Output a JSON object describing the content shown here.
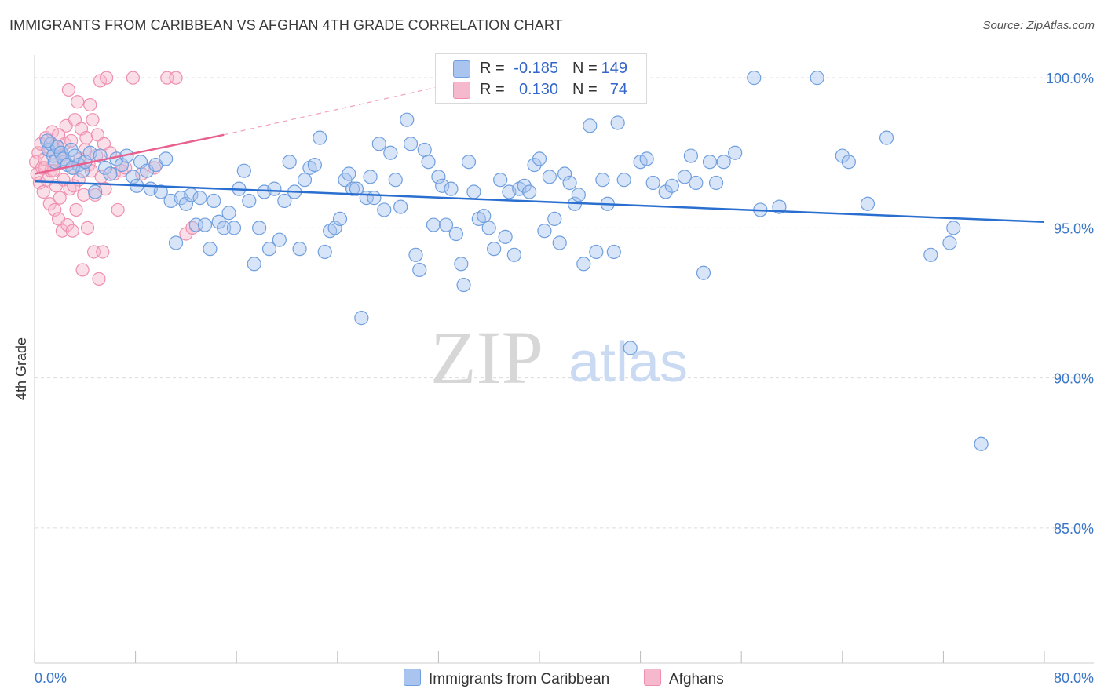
{
  "title": "IMMIGRANTS FROM CARIBBEAN VS AFGHAN 4TH GRADE CORRELATION CHART",
  "source": "Source: ZipAtlas.com",
  "watermark": {
    "zip": "ZIP",
    "atlas": "atlas"
  },
  "colors": {
    "blue_fill": "#a9c4ee",
    "blue_stroke": "#6f9fdf",
    "blue_line": "#2a6fcf",
    "pink_fill": "#f6b8cc",
    "pink_stroke": "#ee8fae",
    "pink_line": "#e8608e",
    "axis_label": "#3a76c8",
    "grid": "#dcdcdc"
  },
  "legend": {
    "rows": [
      {
        "series": "Immigrants from Caribbean",
        "r_label": "R =",
        "r_value": "-0.185",
        "n_label": "N =",
        "n_value": "149"
      },
      {
        "series": "Afghans",
        "r_label": "R =",
        "r_value": "0.130",
        "n_label": "N =",
        "n_value": "74"
      }
    ]
  },
  "chart_data": {
    "type": "scatter",
    "title": "IMMIGRANTS FROM CARIBBEAN VS AFGHAN 4TH GRADE CORRELATION CHART",
    "xlabel": "",
    "ylabel": "4th Grade",
    "xlim": [
      0,
      80
    ],
    "ylim": [
      80.5,
      100.5
    ],
    "x_tick_labels": [
      "0.0%",
      "80.0%"
    ],
    "y_ticks": [
      85,
      90,
      95,
      100
    ],
    "y_tick_labels": [
      "85.0%",
      "90.0%",
      "95.0%",
      "100.0%"
    ],
    "grid": true,
    "series": [
      {
        "name": "Immigrants from Caribbean",
        "r": -0.185,
        "n": 149,
        "trend": {
          "x": [
            0,
            80
          ],
          "y": [
            96.55,
            95.2
          ],
          "dashed_extension": false
        },
        "points": [
          [
            1.1,
            97.6
          ],
          [
            1.3,
            97.8
          ],
          [
            1.5,
            97.4
          ],
          [
            1.6,
            97.2
          ],
          [
            1.8,
            97.7
          ],
          [
            2.1,
            97.5
          ],
          [
            2.3,
            97.3
          ],
          [
            2.6,
            97.1
          ],
          [
            2.9,
            97.6
          ],
          [
            3.2,
            97.4
          ],
          [
            3.5,
            97.1
          ],
          [
            3.8,
            96.9
          ],
          [
            4.0,
            97.2
          ],
          [
            4.4,
            97.5
          ],
          [
            4.8,
            96.2
          ],
          [
            5.2,
            97.4
          ],
          [
            5.6,
            97.0
          ],
          [
            6.0,
            96.8
          ],
          [
            6.5,
            97.3
          ],
          [
            6.9,
            97.1
          ],
          [
            7.3,
            97.4
          ],
          [
            7.8,
            96.7
          ],
          [
            8.1,
            96.4
          ],
          [
            8.4,
            97.2
          ],
          [
            8.9,
            96.9
          ],
          [
            9.2,
            96.3
          ],
          [
            9.6,
            97.1
          ],
          [
            10.0,
            96.2
          ],
          [
            10.4,
            97.3
          ],
          [
            10.8,
            95.9
          ],
          [
            11.2,
            94.5
          ],
          [
            11.6,
            96.0
          ],
          [
            12.0,
            95.8
          ],
          [
            12.4,
            96.1
          ],
          [
            12.8,
            95.1
          ],
          [
            13.1,
            96.0
          ],
          [
            13.5,
            95.1
          ],
          [
            13.9,
            94.3
          ],
          [
            14.2,
            95.9
          ],
          [
            14.6,
            95.2
          ],
          [
            15.0,
            95.0
          ],
          [
            15.4,
            95.5
          ],
          [
            15.8,
            95.0
          ],
          [
            16.2,
            96.3
          ],
          [
            16.6,
            96.9
          ],
          [
            17.0,
            95.9
          ],
          [
            17.4,
            93.8
          ],
          [
            17.8,
            95.0
          ],
          [
            18.2,
            96.2
          ],
          [
            18.6,
            94.3
          ],
          [
            19.0,
            96.3
          ],
          [
            19.4,
            94.6
          ],
          [
            19.8,
            95.9
          ],
          [
            20.2,
            97.2
          ],
          [
            20.6,
            96.2
          ],
          [
            21.0,
            94.3
          ],
          [
            21.4,
            96.6
          ],
          [
            21.8,
            97.0
          ],
          [
            22.2,
            97.1
          ],
          [
            22.6,
            98.0
          ],
          [
            23.0,
            94.2
          ],
          [
            23.4,
            94.9
          ],
          [
            23.8,
            95.0
          ],
          [
            24.2,
            95.3
          ],
          [
            24.6,
            96.6
          ],
          [
            24.9,
            96.8
          ],
          [
            25.2,
            96.3
          ],
          [
            25.5,
            96.3
          ],
          [
            25.9,
            92.0
          ],
          [
            26.3,
            96.0
          ],
          [
            26.6,
            96.7
          ],
          [
            26.9,
            96.0
          ],
          [
            27.3,
            97.8
          ],
          [
            27.7,
            95.6
          ],
          [
            28.2,
            97.5
          ],
          [
            28.6,
            96.6
          ],
          [
            29.0,
            95.7
          ],
          [
            29.5,
            98.6
          ],
          [
            29.8,
            97.8
          ],
          [
            30.2,
            94.1
          ],
          [
            30.5,
            93.6
          ],
          [
            30.9,
            97.6
          ],
          [
            31.2,
            97.2
          ],
          [
            31.6,
            95.1
          ],
          [
            32.0,
            96.7
          ],
          [
            32.3,
            96.4
          ],
          [
            32.6,
            95.1
          ],
          [
            33.0,
            96.3
          ],
          [
            33.4,
            94.8
          ],
          [
            33.8,
            93.8
          ],
          [
            34.0,
            93.1
          ],
          [
            34.4,
            97.2
          ],
          [
            34.8,
            96.2
          ],
          [
            35.2,
            95.3
          ],
          [
            35.6,
            95.4
          ],
          [
            36.0,
            95.0
          ],
          [
            36.4,
            94.3
          ],
          [
            36.9,
            96.6
          ],
          [
            37.3,
            94.7
          ],
          [
            37.6,
            96.2
          ],
          [
            38.0,
            94.1
          ],
          [
            38.4,
            96.3
          ],
          [
            38.8,
            96.4
          ],
          [
            39.2,
            96.2
          ],
          [
            39.6,
            97.1
          ],
          [
            40.0,
            97.3
          ],
          [
            40.4,
            94.9
          ],
          [
            40.8,
            96.7
          ],
          [
            41.2,
            95.3
          ],
          [
            41.6,
            94.5
          ],
          [
            42.0,
            96.8
          ],
          [
            42.4,
            96.5
          ],
          [
            42.8,
            95.8
          ],
          [
            43.1,
            96.1
          ],
          [
            43.5,
            93.8
          ],
          [
            44.0,
            98.4
          ],
          [
            44.5,
            94.2
          ],
          [
            45.0,
            96.6
          ],
          [
            45.4,
            95.8
          ],
          [
            45.9,
            94.2
          ],
          [
            46.2,
            98.5
          ],
          [
            46.7,
            96.6
          ],
          [
            47.2,
            91.0
          ],
          [
            48.0,
            97.2
          ],
          [
            48.5,
            97.3
          ],
          [
            49.0,
            96.5
          ],
          [
            50.0,
            96.2
          ],
          [
            50.5,
            96.4
          ],
          [
            51.5,
            96.7
          ],
          [
            52.0,
            97.4
          ],
          [
            52.4,
            96.5
          ],
          [
            53.0,
            93.5
          ],
          [
            53.5,
            97.2
          ],
          [
            54.0,
            96.5
          ],
          [
            54.6,
            97.2
          ],
          [
            55.5,
            97.5
          ],
          [
            57.0,
            100.0
          ],
          [
            57.5,
            95.6
          ],
          [
            59.0,
            95.7
          ],
          [
            62.0,
            100.0
          ],
          [
            64.0,
            97.4
          ],
          [
            64.5,
            97.2
          ],
          [
            66.0,
            95.8
          ],
          [
            67.5,
            98.0
          ],
          [
            71.0,
            94.1
          ],
          [
            72.5,
            94.5
          ],
          [
            72.8,
            95.0
          ],
          [
            75.0,
            87.8
          ],
          [
            1.0,
            97.9
          ],
          [
            3.0,
            97.0
          ]
        ]
      },
      {
        "name": "Afghans",
        "r": 0.13,
        "n": 74,
        "trend": {
          "x": [
            0,
            15
          ],
          "y": [
            96.8,
            98.1
          ],
          "dashed_extension": true,
          "dashed_to": [
            32,
            99.7
          ]
        },
        "points": [
          [
            0.1,
            97.2
          ],
          [
            0.2,
            96.8
          ],
          [
            0.3,
            97.5
          ],
          [
            0.4,
            96.5
          ],
          [
            0.5,
            97.8
          ],
          [
            0.6,
            97.0
          ],
          [
            0.7,
            96.2
          ],
          [
            0.8,
            97.3
          ],
          [
            0.9,
            98.0
          ],
          [
            1.0,
            96.6
          ],
          [
            1.1,
            97.6
          ],
          [
            1.2,
            95.8
          ],
          [
            1.3,
            96.9
          ],
          [
            1.4,
            98.2
          ],
          [
            1.5,
            97.1
          ],
          [
            1.6,
            95.6
          ],
          [
            1.7,
            96.4
          ],
          [
            1.8,
            97.7
          ],
          [
            1.9,
            95.3
          ],
          [
            2.0,
            96.0
          ],
          [
            2.1,
            97.4
          ],
          [
            2.2,
            94.9
          ],
          [
            2.3,
            96.6
          ],
          [
            2.4,
            97.8
          ],
          [
            2.5,
            98.4
          ],
          [
            2.6,
            95.1
          ],
          [
            2.7,
            99.6
          ],
          [
            2.8,
            96.3
          ],
          [
            2.9,
            97.9
          ],
          [
            3.0,
            94.9
          ],
          [
            3.1,
            97.0
          ],
          [
            3.2,
            98.6
          ],
          [
            3.3,
            95.6
          ],
          [
            3.4,
            99.2
          ],
          [
            3.5,
            96.6
          ],
          [
            3.6,
            97.3
          ],
          [
            3.7,
            98.3
          ],
          [
            3.8,
            93.6
          ],
          [
            3.9,
            96.1
          ],
          [
            4.0,
            97.6
          ],
          [
            4.1,
            98.0
          ],
          [
            4.2,
            95.0
          ],
          [
            4.3,
            97.1
          ],
          [
            4.4,
            99.1
          ],
          [
            4.5,
            96.9
          ],
          [
            4.6,
            98.6
          ],
          [
            4.7,
            94.2
          ],
          [
            4.8,
            96.1
          ],
          [
            4.9,
            97.4
          ],
          [
            5.0,
            98.1
          ],
          [
            5.1,
            93.3
          ],
          [
            5.2,
            99.9
          ],
          [
            5.3,
            96.7
          ],
          [
            5.4,
            94.2
          ],
          [
            5.5,
            97.8
          ],
          [
            5.6,
            96.3
          ],
          [
            5.7,
            100.0
          ],
          [
            6.0,
            97.5
          ],
          [
            6.3,
            96.8
          ],
          [
            6.6,
            95.6
          ],
          [
            6.9,
            96.9
          ],
          [
            7.2,
            97.0
          ],
          [
            7.8,
            100.0
          ],
          [
            8.5,
            96.8
          ],
          [
            9.5,
            97.0
          ],
          [
            10.5,
            100.0
          ],
          [
            11.2,
            100.0
          ],
          [
            12.0,
            94.8
          ],
          [
            12.5,
            95.0
          ],
          [
            1.5,
            96.9
          ],
          [
            2.3,
            97.2
          ],
          [
            3.1,
            96.4
          ],
          [
            0.8,
            97.0
          ],
          [
            1.9,
            98.1
          ]
        ]
      }
    ]
  }
}
